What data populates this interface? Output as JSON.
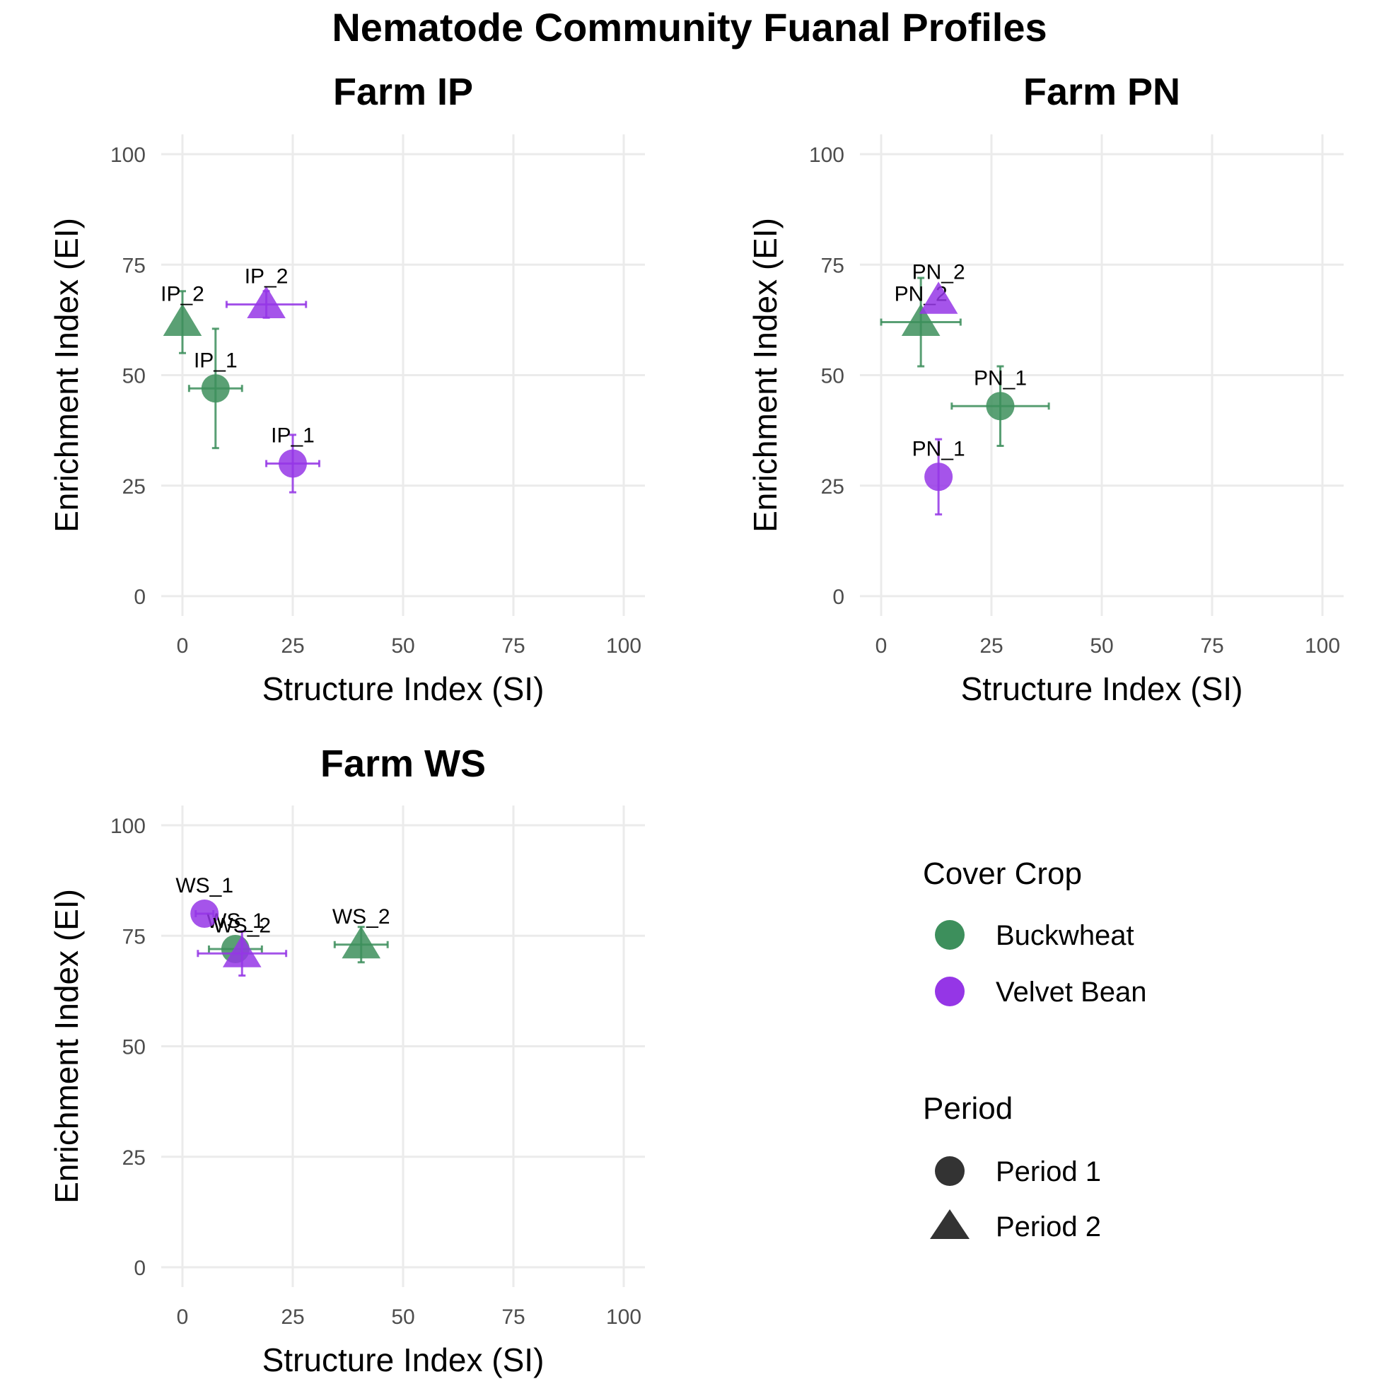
{
  "title": "Nematode Community Fuanal Profiles",
  "colors": {
    "Buckwheat": "#3d8f5c",
    "Velvet Bean": "#9536e6",
    "grid": "#ebebeb",
    "legend_shape": "#333333"
  },
  "chart_data": [
    {
      "type": "scatter",
      "title": "Farm IP",
      "xlabel": "Structure Index (SI)",
      "ylabel": "Enrichment Index (EI)",
      "xlim": [
        0,
        100
      ],
      "ylim": [
        0,
        100
      ],
      "xticks": [
        0,
        25,
        50,
        75,
        100
      ],
      "yticks": [
        0,
        25,
        50,
        75,
        100
      ],
      "grid": true,
      "points": [
        {
          "label": "IP_1",
          "crop": "Buckwheat",
          "period": "Period 1",
          "x": 7.5,
          "y": 47,
          "xerr": 6,
          "yerr": 13.5
        },
        {
          "label": "IP_2",
          "crop": "Buckwheat",
          "period": "Period 2",
          "x": 0,
          "y": 62,
          "xerr": 0,
          "yerr": 7
        },
        {
          "label": "IP_1",
          "crop": "Velvet Bean",
          "period": "Period 1",
          "x": 25,
          "y": 30,
          "xerr": 6,
          "yerr": 6.5
        },
        {
          "label": "IP_2",
          "crop": "Velvet Bean",
          "period": "Period 2",
          "x": 19,
          "y": 66,
          "xerr": 9,
          "yerr": 3
        }
      ]
    },
    {
      "type": "scatter",
      "title": "Farm PN",
      "xlabel": "Structure Index (SI)",
      "ylabel": "Enrichment Index (EI)",
      "xlim": [
        0,
        100
      ],
      "ylim": [
        0,
        100
      ],
      "xticks": [
        0,
        25,
        50,
        75,
        100
      ],
      "yticks": [
        0,
        25,
        50,
        75,
        100
      ],
      "grid": true,
      "points": [
        {
          "label": "PN_1",
          "crop": "Buckwheat",
          "period": "Period 1",
          "x": 27,
          "y": 43,
          "xerr": 11,
          "yerr": 9
        },
        {
          "label": "PN_2",
          "crop": "Buckwheat",
          "period": "Period 2",
          "x": 9,
          "y": 62,
          "xerr": 9,
          "yerr": 10
        },
        {
          "label": "PN_1",
          "crop": "Velvet Bean",
          "period": "Period 1",
          "x": 13,
          "y": 27,
          "xerr": 0,
          "yerr": 8.5
        },
        {
          "label": "PN_2",
          "crop": "Velvet Bean",
          "period": "Period 2",
          "x": 13,
          "y": 67,
          "xerr": 0,
          "yerr": 0
        }
      ]
    },
    {
      "type": "scatter",
      "title": "Farm WS",
      "xlabel": "Structure Index (SI)",
      "ylabel": "Enrichment Index (EI)",
      "xlim": [
        0,
        100
      ],
      "ylim": [
        0,
        100
      ],
      "xticks": [
        0,
        25,
        50,
        75,
        100
      ],
      "yticks": [
        0,
        25,
        50,
        75,
        100
      ],
      "grid": true,
      "points": [
        {
          "label": "WS_1",
          "crop": "Buckwheat",
          "period": "Period 1",
          "x": 12,
          "y": 72,
          "xerr": 6,
          "yerr": 0
        },
        {
          "label": "WS_2",
          "crop": "Buckwheat",
          "period": "Period 2",
          "x": 40.5,
          "y": 73,
          "xerr": 6,
          "yerr": 4
        },
        {
          "label": "WS_1",
          "crop": "Velvet Bean",
          "period": "Period 1",
          "x": 5,
          "y": 80,
          "xerr": 2,
          "yerr": 0
        },
        {
          "label": "WS_2",
          "crop": "Velvet Bean",
          "period": "Period 2",
          "x": 13.5,
          "y": 71,
          "xerr": 10,
          "yerr": 5
        }
      ]
    }
  ],
  "legend": {
    "placement": "bottom-right",
    "crop_title": "Cover Crop",
    "crop_items": [
      "Buckwheat",
      "Velvet Bean"
    ],
    "period_title": "Period",
    "period_items": [
      {
        "label": "Period 1",
        "shape": "circle"
      },
      {
        "label": "Period 2",
        "shape": "triangle"
      }
    ]
  }
}
